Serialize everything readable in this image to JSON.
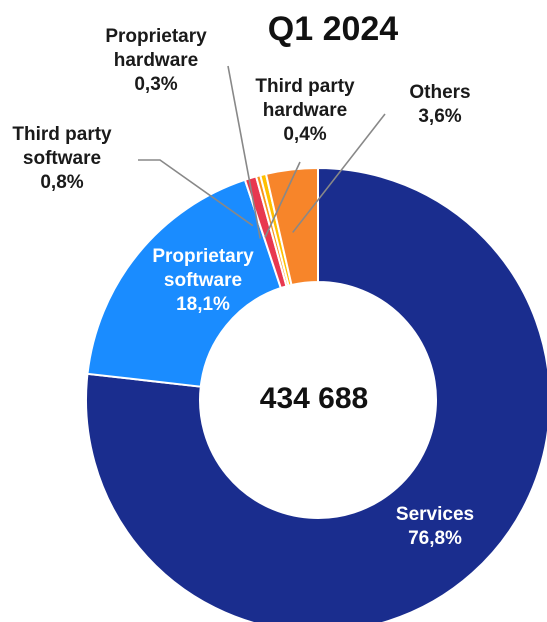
{
  "chart_data": {
    "type": "pie",
    "title": "Q1 2024",
    "center_value": "434 688",
    "slices": [
      {
        "name_lines": [
          "Services"
        ],
        "value": 76.8,
        "value_label": "76,8%",
        "color": "#1a2d8e"
      },
      {
        "name_lines": [
          "Proprietary",
          "software"
        ],
        "value": 18.1,
        "value_label": "18,1%",
        "color": "#1a8cff"
      },
      {
        "name_lines": [
          "Third party",
          "software"
        ],
        "value": 0.8,
        "value_label": "0,8%",
        "color": "#e8384f"
      },
      {
        "name_lines": [
          "Proprietary",
          "hardware"
        ],
        "value": 0.3,
        "value_label": "0,3%",
        "color": "#f7941d"
      },
      {
        "name_lines": [
          "Third party",
          "hardware"
        ],
        "value": 0.4,
        "value_label": "0,4%",
        "color": "#ffc000"
      },
      {
        "name_lines": [
          "Others"
        ],
        "value": 3.6,
        "value_label": "3,6%",
        "color": "#f7852a"
      }
    ]
  }
}
